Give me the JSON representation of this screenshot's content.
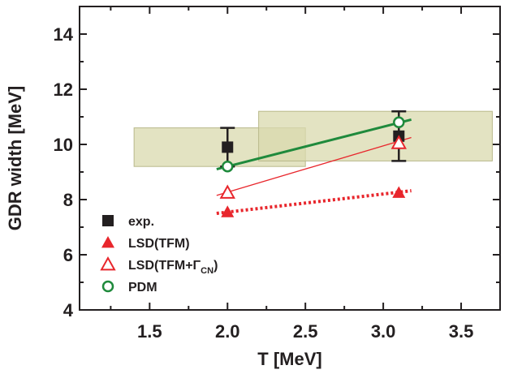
{
  "chart_data": {
    "type": "scatter",
    "xlabel": "T [MeV]",
    "ylabel": "GDR width [MeV]",
    "xlim": [
      1.05,
      3.75
    ],
    "ylim": [
      4,
      15
    ],
    "xticks": [
      1.5,
      2.0,
      2.5,
      3.0,
      3.5
    ],
    "xtick_labels": [
      "1.5",
      "2.0",
      "2.5",
      "3.0",
      "3.5"
    ],
    "yticks": [
      4,
      6,
      8,
      10,
      12,
      14
    ],
    "ytick_labels": [
      "4",
      "6",
      "8",
      "10",
      "12",
      "14"
    ],
    "grid": false,
    "legend_position": "bottom-left",
    "shaded_bands": [
      {
        "x": [
          1.4,
          2.5
        ],
        "y": [
          9.2,
          10.6
        ],
        "color": "#d9d9ad"
      },
      {
        "x": [
          2.2,
          3.7
        ],
        "y": [
          9.4,
          11.2
        ],
        "color": "#d9d9ad"
      }
    ],
    "series": [
      {
        "name": "exp.",
        "marker": "filled-square",
        "color": "#231f20",
        "x": [
          2.0,
          3.1
        ],
        "y": [
          9.9,
          10.3
        ],
        "yerr_low": [
          9.2,
          9.4
        ],
        "yerr_high": [
          10.6,
          11.2
        ]
      },
      {
        "name": "LSD(TFM)",
        "marker": "filled-triangle",
        "color": "#e8262c",
        "x": [
          2.0,
          3.1
        ],
        "y": [
          7.55,
          8.25
        ],
        "fit": {
          "x": [
            1.93,
            3.18
          ],
          "y": [
            7.5,
            8.32
          ],
          "style": "dotted"
        }
      },
      {
        "name": "LSD(TFM+Γ",
        "name_sub": "CN",
        "name_suffix": ")",
        "marker": "open-triangle",
        "color": "#e8262c",
        "x": [
          2.0,
          3.1
        ],
        "y": [
          8.25,
          10.05
        ],
        "fit": {
          "x": [
            1.93,
            3.18
          ],
          "y": [
            8.15,
            10.25
          ],
          "style": "solid"
        }
      },
      {
        "name": "PDM",
        "marker": "open-circle",
        "color": "#1f8a3c",
        "x": [
          2.0,
          3.1
        ],
        "y": [
          9.2,
          10.8
        ],
        "fit": {
          "x": [
            1.93,
            3.18
          ],
          "y": [
            9.1,
            10.9
          ],
          "style": "solid-thick"
        }
      }
    ]
  }
}
